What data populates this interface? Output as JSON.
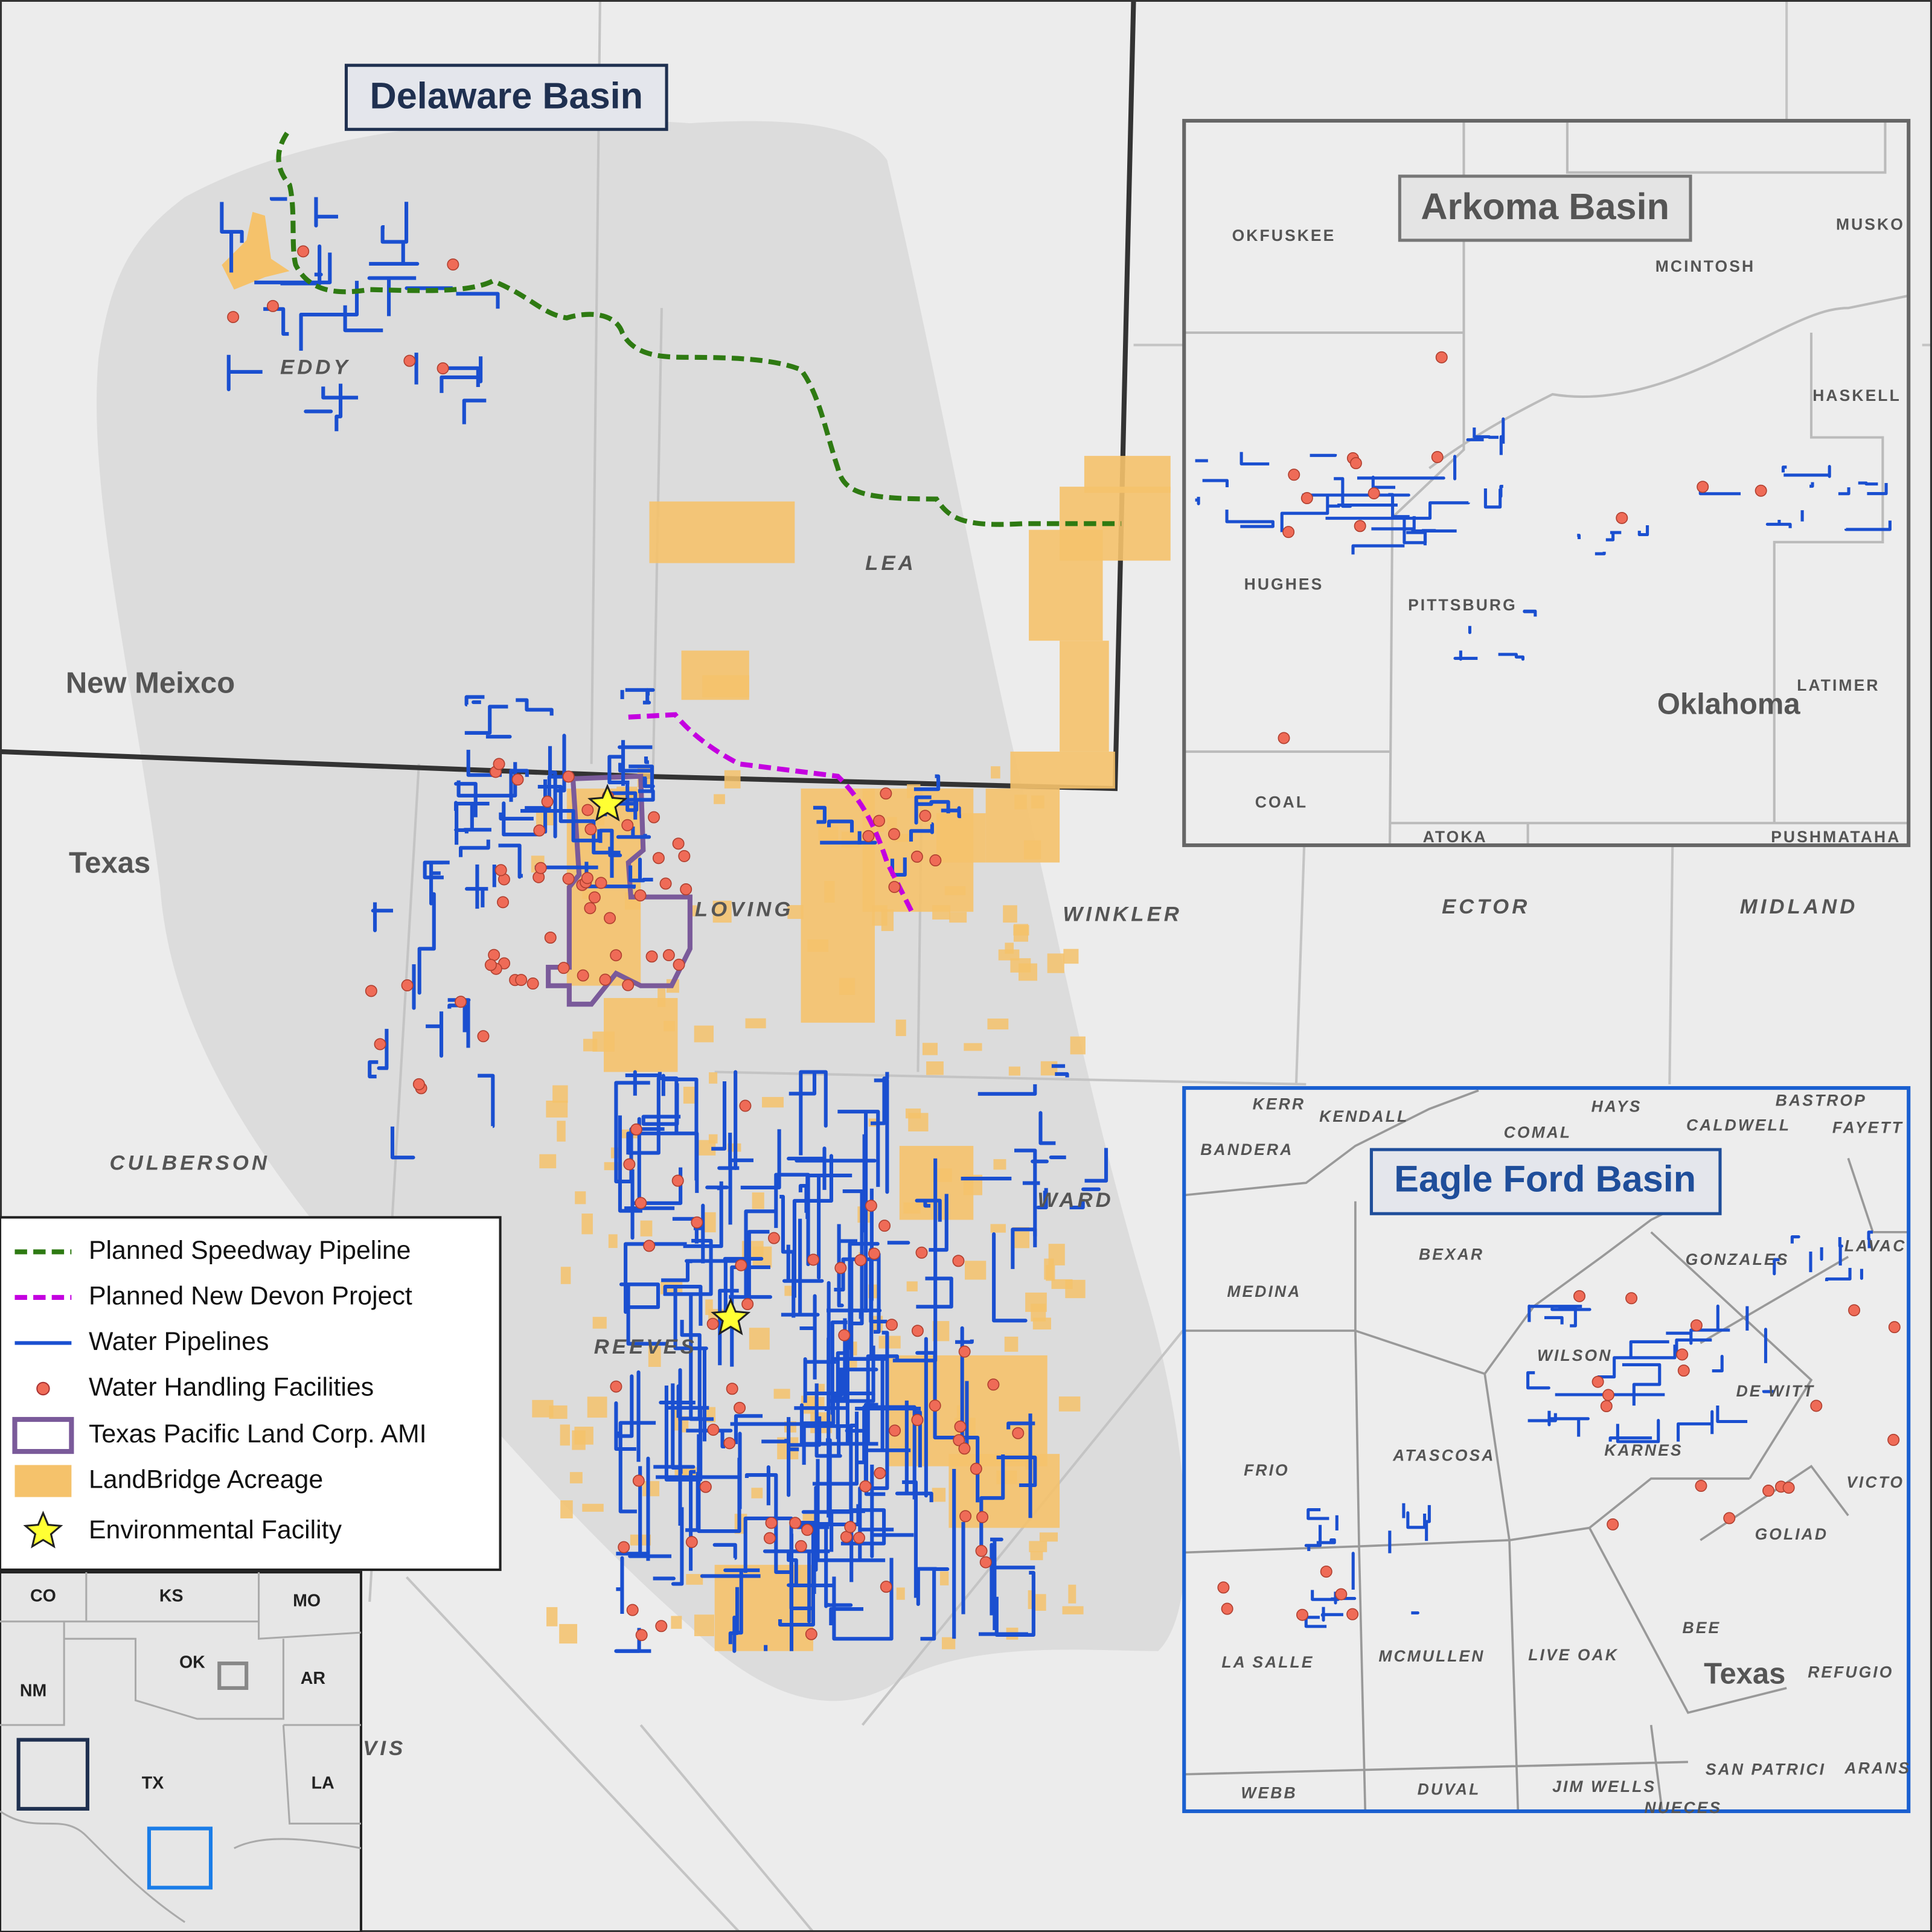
{
  "main_map": {
    "title": "Delaware Basin",
    "regions": [
      "New Meixco",
      "Texas"
    ],
    "counties": [
      "EDDY",
      "LEA",
      "LOVING",
      "WINKLER",
      "ECTOR",
      "MIDLAND",
      "CULBERSON",
      "WARD",
      "REEVES",
      "VIS"
    ]
  },
  "arkoma_inset": {
    "title": "Arkoma Basin",
    "state": "Oklahoma",
    "counties": [
      "OKFUSKEE",
      "MCINTOSH",
      "MUSKO",
      "HASKELL",
      "HUGHES",
      "PITTSBURG",
      "LATIMER",
      "COAL",
      "ATOKA",
      "PUSHMATAHA"
    ]
  },
  "eagle_ford_inset": {
    "title": "Eagle Ford Basin",
    "state": "Texas",
    "counties": [
      "KERR",
      "KENDALL",
      "HAYS",
      "BASTROP",
      "COMAL",
      "CALDWELL",
      "FAYETT",
      "BANDERA",
      "BEXAR",
      "GONZALES",
      "LAVAC",
      "MEDINA",
      "WILSON",
      "DE WITT",
      "KARNES",
      "FRIO",
      "ATASCOSA",
      "VICTO",
      "GOLIAD",
      "BEE",
      "LA SALLE",
      "MCMULLEN",
      "LIVE OAK",
      "REFUGIO",
      "SAN PATRICI",
      "ARANS",
      "WEBB",
      "DUVAL",
      "JIM WELLS",
      "NUECES"
    ]
  },
  "legend": {
    "items": [
      "Planned Speedway Pipeline",
      "Planned New Devon Project",
      "Water Pipelines",
      "Water Handling Facilities",
      "Texas Pacific Land Corp. AMI",
      "LandBridge Acreage",
      "Environmental Facility"
    ]
  },
  "locator_map": {
    "states": [
      "CO",
      "KS",
      "MO",
      "NM",
      "OK",
      "AR",
      "TX",
      "LA"
    ]
  }
}
